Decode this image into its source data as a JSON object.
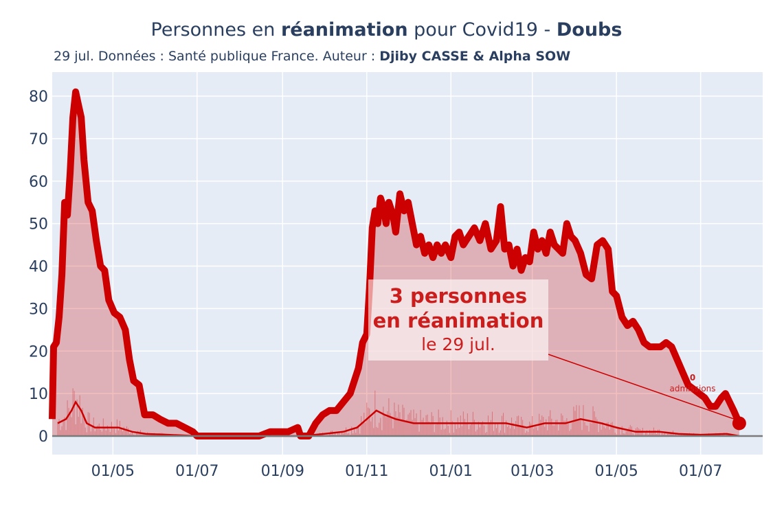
{
  "header": {
    "title_pre": "Personnes en ",
    "title_bold1": "réanimation",
    "title_mid": " pour Covid19 - ",
    "title_bold2": "Doubs",
    "subtitle_pre": "29 jul. Données : Santé publique France. Auteur : ",
    "subtitle_bold": "Djiby CASSE & Alpha SOW"
  },
  "annotations": {
    "main_line1": "3 personnes",
    "main_line2": "en réanimation",
    "main_line3": "le 29 jul.",
    "admissions_value": "0",
    "admissions_label": "admissions"
  },
  "colors": {
    "plot_bg": "#e5ecf6",
    "grid": "#ffffff",
    "line": "#cc0000",
    "fill": "rgba(204,0,0,0.25)",
    "text": "#2a3f5f"
  },
  "chart_data": {
    "type": "area",
    "x_range": [
      "2020-03-18",
      "2021-08-15"
    ],
    "y_range": [
      0,
      85
    ],
    "y_ticks": [
      0,
      10,
      20,
      30,
      40,
      50,
      60,
      70,
      80
    ],
    "x_ticks": [
      {
        "date": "2020-05-01",
        "label": "01/05"
      },
      {
        "date": "2020-07-01",
        "label": "01/07"
      },
      {
        "date": "2020-09-01",
        "label": "01/09"
      },
      {
        "date": "2020-11-01",
        "label": "01/11"
      },
      {
        "date": "2021-01-01",
        "label": "01/01"
      },
      {
        "date": "2021-03-01",
        "label": "01/03"
      },
      {
        "date": "2021-05-01",
        "label": "01/05"
      },
      {
        "date": "2021-07-01",
        "label": "01/07"
      }
    ],
    "grid": true,
    "series": [
      {
        "role": "reanimation",
        "points": [
          [
            "2020-03-18",
            4
          ],
          [
            "2020-03-19",
            21
          ],
          [
            "2020-03-21",
            22
          ],
          [
            "2020-03-23",
            28
          ],
          [
            "2020-03-25",
            38
          ],
          [
            "2020-03-27",
            55
          ],
          [
            "2020-03-29",
            52
          ],
          [
            "2020-03-31",
            62
          ],
          [
            "2020-04-02",
            75
          ],
          [
            "2020-04-04",
            81
          ],
          [
            "2020-04-06",
            78
          ],
          [
            "2020-04-08",
            75
          ],
          [
            "2020-04-10",
            65
          ],
          [
            "2020-04-13",
            55
          ],
          [
            "2020-04-16",
            53
          ],
          [
            "2020-04-19",
            46
          ],
          [
            "2020-04-22",
            40
          ],
          [
            "2020-04-25",
            39
          ],
          [
            "2020-04-28",
            32
          ],
          [
            "2020-05-02",
            29
          ],
          [
            "2020-05-06",
            28
          ],
          [
            "2020-05-10",
            25
          ],
          [
            "2020-05-13",
            18
          ],
          [
            "2020-05-16",
            13
          ],
          [
            "2020-05-20",
            12
          ],
          [
            "2020-05-24",
            5
          ],
          [
            "2020-05-30",
            5
          ],
          [
            "2020-06-04",
            4
          ],
          [
            "2020-06-10",
            3
          ],
          [
            "2020-06-16",
            3
          ],
          [
            "2020-06-22",
            2
          ],
          [
            "2020-06-28",
            1
          ],
          [
            "2020-07-01",
            0
          ],
          [
            "2020-07-15",
            0
          ],
          [
            "2020-08-01",
            0
          ],
          [
            "2020-08-15",
            0
          ],
          [
            "2020-08-23",
            1
          ],
          [
            "2020-09-05",
            1
          ],
          [
            "2020-09-12",
            2
          ],
          [
            "2020-09-14",
            0
          ],
          [
            "2020-09-20",
            0
          ],
          [
            "2020-09-25",
            3
          ],
          [
            "2020-09-30",
            5
          ],
          [
            "2020-10-05",
            6
          ],
          [
            "2020-10-10",
            6
          ],
          [
            "2020-10-15",
            8
          ],
          [
            "2020-10-20",
            10
          ],
          [
            "2020-10-23",
            13
          ],
          [
            "2020-10-26",
            16
          ],
          [
            "2020-10-29",
            22
          ],
          [
            "2020-11-01",
            24
          ],
          [
            "2020-11-03",
            35
          ],
          [
            "2020-11-05",
            49
          ],
          [
            "2020-11-07",
            53
          ],
          [
            "2020-11-09",
            50
          ],
          [
            "2020-11-11",
            56
          ],
          [
            "2020-11-13",
            54
          ],
          [
            "2020-11-15",
            50
          ],
          [
            "2020-11-17",
            55
          ],
          [
            "2020-11-20",
            52
          ],
          [
            "2020-11-22",
            48
          ],
          [
            "2020-11-25",
            57
          ],
          [
            "2020-11-28",
            53
          ],
          [
            "2020-12-01",
            55
          ],
          [
            "2020-12-04",
            50
          ],
          [
            "2020-12-07",
            45
          ],
          [
            "2020-12-10",
            47
          ],
          [
            "2020-12-13",
            43
          ],
          [
            "2020-12-16",
            45
          ],
          [
            "2020-12-19",
            42
          ],
          [
            "2020-12-22",
            45
          ],
          [
            "2020-12-25",
            43
          ],
          [
            "2020-12-28",
            45
          ],
          [
            "2021-01-01",
            42
          ],
          [
            "2021-01-04",
            47
          ],
          [
            "2021-01-07",
            48
          ],
          [
            "2021-01-10",
            45
          ],
          [
            "2021-01-14",
            47
          ],
          [
            "2021-01-18",
            49
          ],
          [
            "2021-01-22",
            46
          ],
          [
            "2021-01-26",
            50
          ],
          [
            "2021-01-30",
            44
          ],
          [
            "2021-02-03",
            46
          ],
          [
            "2021-02-06",
            54
          ],
          [
            "2021-02-09",
            44
          ],
          [
            "2021-02-12",
            45
          ],
          [
            "2021-02-15",
            40
          ],
          [
            "2021-02-18",
            44
          ],
          [
            "2021-02-21",
            39
          ],
          [
            "2021-02-24",
            42
          ],
          [
            "2021-02-27",
            41
          ],
          [
            "2021-03-02",
            48
          ],
          [
            "2021-03-05",
            44
          ],
          [
            "2021-03-08",
            46
          ],
          [
            "2021-03-11",
            43
          ],
          [
            "2021-03-14",
            48
          ],
          [
            "2021-03-17",
            45
          ],
          [
            "2021-03-20",
            44
          ],
          [
            "2021-03-23",
            43
          ],
          [
            "2021-03-26",
            50
          ],
          [
            "2021-03-29",
            47
          ],
          [
            "2021-04-01",
            46
          ],
          [
            "2021-04-05",
            43
          ],
          [
            "2021-04-09",
            38
          ],
          [
            "2021-04-13",
            37
          ],
          [
            "2021-04-17",
            45
          ],
          [
            "2021-04-21",
            46
          ],
          [
            "2021-04-25",
            44
          ],
          [
            "2021-04-28",
            34
          ],
          [
            "2021-05-01",
            33
          ],
          [
            "2021-05-05",
            28
          ],
          [
            "2021-05-09",
            26
          ],
          [
            "2021-05-13",
            27
          ],
          [
            "2021-05-17",
            25
          ],
          [
            "2021-05-21",
            22
          ],
          [
            "2021-05-25",
            21
          ],
          [
            "2021-05-29",
            21
          ],
          [
            "2021-06-02",
            21
          ],
          [
            "2021-06-06",
            22
          ],
          [
            "2021-06-10",
            21
          ],
          [
            "2021-06-14",
            18
          ],
          [
            "2021-06-18",
            15
          ],
          [
            "2021-06-22",
            12
          ],
          [
            "2021-06-26",
            11
          ],
          [
            "2021-06-30",
            10
          ],
          [
            "2021-07-04",
            9
          ],
          [
            "2021-07-08",
            7
          ],
          [
            "2021-07-12",
            7
          ],
          [
            "2021-07-16",
            9
          ],
          [
            "2021-07-19",
            10
          ],
          [
            "2021-07-22",
            8
          ],
          [
            "2021-07-25",
            6
          ],
          [
            "2021-07-29",
            3
          ]
        ],
        "last_point": [
          "2021-07-29",
          3
        ]
      },
      {
        "role": "admissions_rolling",
        "points": [
          [
            "2020-03-22",
            3
          ],
          [
            "2020-03-28",
            4
          ],
          [
            "2020-04-01",
            6
          ],
          [
            "2020-04-04",
            8
          ],
          [
            "2020-04-08",
            6
          ],
          [
            "2020-04-12",
            3
          ],
          [
            "2020-04-18",
            2
          ],
          [
            "2020-04-26",
            2
          ],
          [
            "2020-05-05",
            2
          ],
          [
            "2020-05-15",
            1
          ],
          [
            "2020-05-25",
            0.5
          ],
          [
            "2020-06-10",
            0.3
          ],
          [
            "2020-07-01",
            0
          ],
          [
            "2020-09-15",
            0
          ],
          [
            "2020-10-01",
            0.5
          ],
          [
            "2020-10-15",
            1
          ],
          [
            "2020-10-25",
            2
          ],
          [
            "2020-11-01",
            4
          ],
          [
            "2020-11-08",
            6
          ],
          [
            "2020-11-14",
            5
          ],
          [
            "2020-11-22",
            4
          ],
          [
            "2020-12-05",
            3
          ],
          [
            "2020-12-20",
            3
          ],
          [
            "2021-01-10",
            3
          ],
          [
            "2021-01-25",
            3
          ],
          [
            "2021-02-10",
            3
          ],
          [
            "2021-02-25",
            2
          ],
          [
            "2021-03-10",
            3
          ],
          [
            "2021-03-25",
            3
          ],
          [
            "2021-04-05",
            4
          ],
          [
            "2021-04-20",
            3
          ],
          [
            "2021-05-01",
            2
          ],
          [
            "2021-05-15",
            1
          ],
          [
            "2021-06-01",
            1
          ],
          [
            "2021-06-15",
            0.5
          ],
          [
            "2021-07-01",
            0.3
          ],
          [
            "2021-07-20",
            0.5
          ],
          [
            "2021-07-29",
            0
          ]
        ]
      }
    ]
  }
}
